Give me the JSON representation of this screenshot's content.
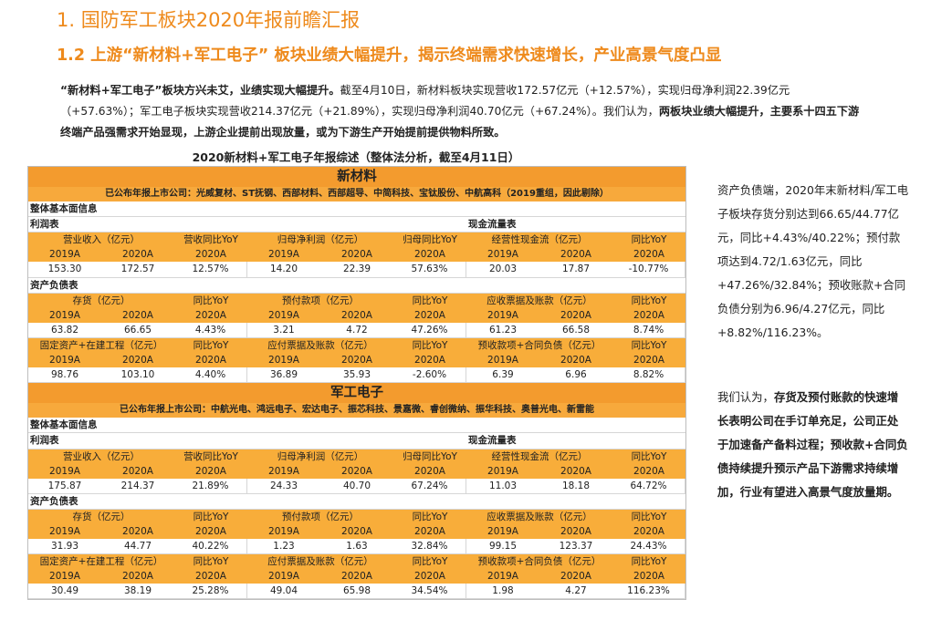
{
  "header": {
    "title": "1. 国防军工板块2020年报前瞻汇报",
    "subtitle": "1.2  上游“新材料+军工电子” 板块业绩大幅提升，揭示终端需求快速增长，产业高景气度凸显"
  },
  "intro": [
    {
      "text": "“新材料+军工电子”板块方兴未艾，业绩实现大幅提升。",
      "bold": true
    },
    {
      "text": "截至4月10日，新材料板块实现营收172.57亿元（+12.57%），实现归母净利润22.39亿元（+57.63%）；军工电子板块实现营收214.37亿元（+21.89%），实现归母净利润40.70亿元（+67.24%）。我们认为，",
      "bold": false
    },
    {
      "text": "两板块业绩大幅提升，主要系十四五下游终端产品强需求开始显现，上游企业提前出现放量，或为下游生产开始提前提供物料所致。",
      "bold": true
    }
  ],
  "table": {
    "title": "2020新材料+军工电子年报综述（整体法分析，截至4月11日）",
    "year_row": [
      "2019A",
      "2020A",
      "2020A",
      "2019A",
      "2020A",
      "2020A",
      "2019A",
      "2020A",
      "2020A"
    ],
    "sections": [
      {
        "name": "新材料",
        "companies": "已公布年报上市公司：光威复材、ST抚钢、西部材料、西部超导、中简科技、宝钛股份、中航高科（2019重组，因此剔除）",
        "overview": "整体基本面信息",
        "income_label": "利润表",
        "cashflow_label": "现金流量表",
        "balance_label": "资产负债表",
        "groups": [
          {
            "headers": [
              "营业收入（亿元）",
              "营收同比YoY",
              "归母净利润（亿元）",
              "归母同比YoY",
              "经营性现金流（亿元）",
              "同比YoY"
            ],
            "values": [
              "153.30",
              "172.57",
              "12.57%",
              "14.20",
              "22.39",
              "57.63%",
              "20.03",
              "17.87",
              "-10.77%"
            ]
          },
          {
            "headers": [
              "存货（亿元）",
              "同比YoY",
              "预付款项（亿元）",
              "同比YoY",
              "应收票据及账款（亿元）",
              "同比YoY"
            ],
            "values": [
              "63.82",
              "66.65",
              "4.43%",
              "3.21",
              "4.72",
              "47.26%",
              "61.23",
              "66.58",
              "8.74%"
            ]
          },
          {
            "headers": [
              "固定资产+在建工程（亿元）",
              "同比YoY",
              "应付票据及账款（亿元）",
              "同比YoY",
              "预收款项+合同负债（亿元）",
              "同比YoY"
            ],
            "values": [
              "98.76",
              "103.10",
              "4.40%",
              "36.89",
              "35.93",
              "-2.60%",
              "6.39",
              "6.96",
              "8.82%"
            ]
          }
        ]
      },
      {
        "name": "军工电子",
        "companies": "已公布年报上市公司：中航光电、鸿远电子、宏达电子、振芯科技、景嘉微、睿创微纳、振华科技、奥普光电、新雷能",
        "overview": "整体基本面信息",
        "income_label": "利润表",
        "cashflow_label": "现金流量表",
        "balance_label": "资产负债表",
        "groups": [
          {
            "headers": [
              "营业收入（亿元）",
              "营收同比YoY",
              "归母净利润（亿元）",
              "归母同比YoY",
              "经营性现金流（亿元）",
              "同比YoY"
            ],
            "values": [
              "175.87",
              "214.37",
              "21.89%",
              "24.33",
              "40.70",
              "67.24%",
              "11.03",
              "18.18",
              "64.72%"
            ]
          },
          {
            "headers": [
              "存货（亿元）",
              "同比YoY",
              "预付款项（亿元）",
              "同比YoY",
              "应收票据及账款（亿元）",
              "同比YoY"
            ],
            "values": [
              "31.93",
              "44.77",
              "40.22%",
              "1.23",
              "1.63",
              "32.84%",
              "99.15",
              "123.37",
              "24.43%"
            ]
          },
          {
            "headers": [
              "固定资产+在建工程（亿元）",
              "同比YoY",
              "应付票据及账款（亿元）",
              "同比YoY",
              "预收款项+合同负债（亿元）",
              "同比YoY"
            ],
            "values": [
              "30.49",
              "38.19",
              "25.28%",
              "49.04",
              "65.98",
              "34.54%",
              "1.98",
              "4.27",
              "116.23%"
            ]
          }
        ]
      }
    ]
  },
  "side": [
    [
      {
        "text": "资产负债端，2020年末新材料/军工电子板块存货分别达到66.65/44.77亿元，同比+4.43%/40.22%；预付款项达到4.72/1.63亿元，同比+47.26%/32.84%；预收账款+合同负债分别为6.96/4.27亿元，同比+8.82%/116.23%。",
        "bold": false
      }
    ],
    [
      {
        "text": "我们认为，",
        "bold": false
      },
      {
        "text": "存货及预付账款的快速增长表明公司在手订单充足，公司正处于加速备产备料过程；预收款+合同负债持续提升预示产品下游需求持续增加，行业有望进入高景气度放量期。",
        "bold": true
      }
    ]
  ]
}
